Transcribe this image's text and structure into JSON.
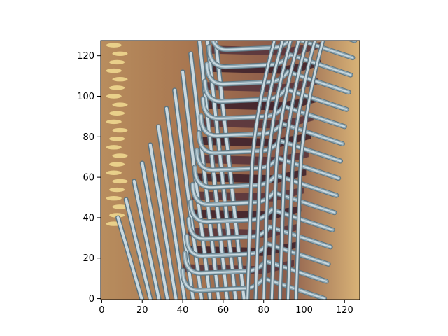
{
  "chart_data": {
    "type": "image",
    "title": "",
    "xlabel": "",
    "ylabel": "",
    "image_shape": [
      128,
      128
    ],
    "xlim": [
      -0.5,
      127.5
    ],
    "ylim": [
      127.5,
      -0.5
    ],
    "y_inverted": true,
    "xticks": [
      0,
      20,
      40,
      60,
      80,
      100,
      120
    ],
    "yticks": [
      0,
      20,
      40,
      60,
      80,
      100,
      120
    ],
    "grid": false,
    "legend": null,
    "image_content": "photo",
    "colors": {
      "background_tan": "#c49a6a",
      "highlight_yellow": "#f2dc92",
      "metal_light": "#c9d8df",
      "metal_mid": "#8fa8b3",
      "metal_dark": "#5c7480",
      "shadow_maroon": "#3a1f2a",
      "seat_dark": "#55323c"
    }
  }
}
